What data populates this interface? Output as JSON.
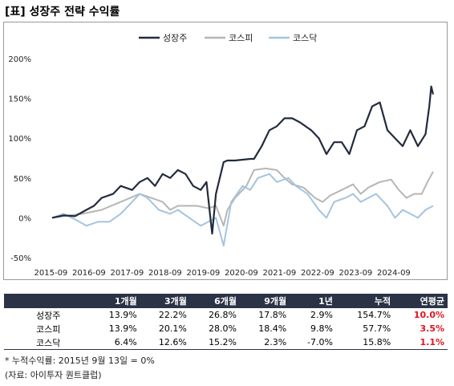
{
  "title": "[표] 성장주 전략 수익률",
  "chart_data": {
    "type": "line",
    "x_ticks": [
      "2015-09",
      "2016-09",
      "2017-09",
      "2018-09",
      "2019-09",
      "2020-09",
      "2021-09",
      "2022-09",
      "2023-09",
      "2024-09"
    ],
    "y_ticks": [
      "200%",
      "150%",
      "100%",
      "50%",
      "0%",
      "-50%"
    ],
    "y_tick_values": [
      200,
      150,
      100,
      50,
      0,
      -50
    ],
    "ylim": [
      -50,
      200
    ],
    "xlim": [
      2015.7,
      2025.7
    ],
    "grid": false,
    "legend_position": "top-center",
    "series": [
      {
        "name": "성장주",
        "color": "#222b3d",
        "x": [
          2015.7,
          2016.0,
          2016.3,
          2016.6,
          2016.8,
          2017.0,
          2017.3,
          2017.5,
          2017.8,
          2018.0,
          2018.2,
          2018.4,
          2018.6,
          2018.8,
          2019.0,
          2019.2,
          2019.4,
          2019.6,
          2019.75,
          2019.9,
          2020.0,
          2020.2,
          2020.3,
          2020.5,
          2020.7,
          2020.9,
          2021.0,
          2021.2,
          2021.4,
          2021.6,
          2021.8,
          2022.0,
          2022.2,
          2022.5,
          2022.7,
          2022.9,
          2023.1,
          2023.3,
          2023.5,
          2023.7,
          2023.9,
          2024.1,
          2024.3,
          2024.5,
          2024.7,
          2024.9,
          2025.1,
          2025.3,
          2025.5,
          2025.6,
          2025.65,
          2025.7
        ],
        "y": [
          0,
          3,
          2,
          10,
          15,
          25,
          30,
          40,
          35,
          45,
          50,
          40,
          55,
          50,
          60,
          55,
          40,
          35,
          45,
          -20,
          30,
          70,
          72,
          72,
          73,
          74,
          74,
          90,
          110,
          115,
          125,
          125,
          120,
          110,
          100,
          80,
          95,
          95,
          80,
          110,
          115,
          140,
          145,
          110,
          100,
          90,
          110,
          90,
          105,
          140,
          165,
          155
        ]
      },
      {
        "name": "코스피",
        "color": "#b6b6b6",
        "x": [
          2015.7,
          2016.0,
          2016.5,
          2017.0,
          2017.5,
          2018.0,
          2018.3,
          2018.6,
          2018.8,
          2019.0,
          2019.5,
          2019.8,
          2020.0,
          2020.2,
          2020.3,
          2020.5,
          2020.8,
          2021.0,
          2021.3,
          2021.6,
          2021.8,
          2022.0,
          2022.3,
          2022.6,
          2022.8,
          2023.0,
          2023.3,
          2023.6,
          2023.8,
          2024.0,
          2024.3,
          2024.6,
          2024.8,
          2025.0,
          2025.2,
          2025.4,
          2025.55,
          2025.7
        ],
        "y": [
          0,
          2,
          5,
          10,
          20,
          30,
          25,
          20,
          10,
          15,
          15,
          12,
          15,
          -10,
          10,
          25,
          40,
          60,
          62,
          60,
          50,
          42,
          38,
          25,
          20,
          28,
          35,
          42,
          30,
          38,
          45,
          48,
          35,
          25,
          30,
          30,
          45,
          58
        ]
      },
      {
        "name": "코스닥",
        "color": "#a4c4df",
        "x": [
          2015.7,
          2016.0,
          2016.3,
          2016.6,
          2016.9,
          2017.2,
          2017.5,
          2017.8,
          2018.0,
          2018.2,
          2018.5,
          2018.8,
          2019.0,
          2019.3,
          2019.6,
          2019.8,
          2020.0,
          2020.2,
          2020.4,
          2020.7,
          2020.9,
          2021.1,
          2021.4,
          2021.6,
          2021.9,
          2022.1,
          2022.4,
          2022.7,
          2022.9,
          2023.1,
          2023.4,
          2023.6,
          2023.8,
          2024.0,
          2024.2,
          2024.5,
          2024.7,
          2024.9,
          2025.1,
          2025.3,
          2025.5,
          2025.7
        ],
        "y": [
          0,
          5,
          -2,
          -10,
          -5,
          -5,
          5,
          20,
          30,
          25,
          10,
          5,
          10,
          0,
          -10,
          -5,
          0,
          -35,
          20,
          40,
          35,
          50,
          55,
          45,
          50,
          40,
          30,
          10,
          0,
          20,
          25,
          30,
          20,
          25,
          30,
          15,
          0,
          10,
          5,
          0,
          10,
          15
        ]
      }
    ]
  },
  "table": {
    "headers": [
      "",
      "1개월",
      "3개월",
      "6개월",
      "9개월",
      "1년",
      "누적",
      "연평균"
    ],
    "rows": [
      {
        "name": "성장주",
        "values": [
          "13.9%",
          "22.2%",
          "26.8%",
          "17.8%",
          "2.9%",
          "154.7%",
          "10.0%"
        ]
      },
      {
        "name": "코스피",
        "values": [
          "13.9%",
          "20.1%",
          "28.0%",
          "18.4%",
          "9.8%",
          "57.7%",
          "3.5%"
        ]
      },
      {
        "name": "코스닥",
        "values": [
          "6.4%",
          "12.6%",
          "15.2%",
          "2.3%",
          "-7.0%",
          "15.8%",
          "1.1%"
        ]
      }
    ],
    "highlight_color": "#e0161e"
  },
  "footnote": "* 누적수익률: 2015년 9월 13일 = 0%",
  "source": "(자료: 아이투자 퀀트클럽)"
}
